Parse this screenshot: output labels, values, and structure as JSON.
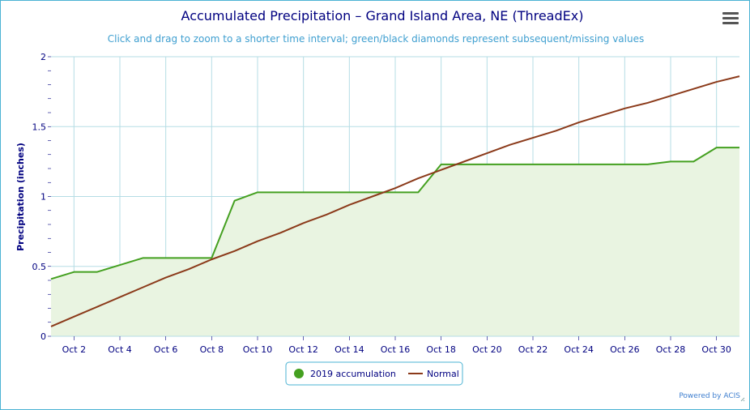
{
  "title": "Accumulated Precipitation – Grand Island Area, NE (ThreadEx)",
  "subtitle": "Click and drag to zoom to a shorter time interval; green/black diamonds represent subsequent/missing values",
  "credit": "Powered by ACIS",
  "menu_icon": "hamburger-menu-icon",
  "colors": {
    "accumulation": "#44a020",
    "accumulation_fill": "#e9f4e1",
    "normal": "#8b3a1a",
    "grid": "#b5dde5",
    "axis_text": "#000080"
  },
  "chart_data": {
    "type": "line",
    "ylabel": "Precipitation (inches)",
    "ylim": [
      0,
      2
    ],
    "yticks": [
      0,
      0.5,
      1,
      1.5,
      2
    ],
    "ytick_labels": [
      "0",
      "0.5",
      "1",
      "1.5",
      "2"
    ],
    "x": [
      1,
      2,
      3,
      4,
      5,
      6,
      7,
      8,
      9,
      10,
      11,
      12,
      13,
      14,
      15,
      16,
      17,
      18,
      19,
      20,
      21,
      22,
      23,
      24,
      25,
      26,
      27,
      28,
      29,
      30,
      31
    ],
    "xlim": [
      1,
      31
    ],
    "xticks": [
      2,
      4,
      6,
      8,
      10,
      12,
      14,
      16,
      18,
      20,
      22,
      24,
      26,
      28,
      30
    ],
    "xtick_labels": [
      "Oct 2",
      "Oct 4",
      "Oct 6",
      "Oct 8",
      "Oct 10",
      "Oct 12",
      "Oct 14",
      "Oct 16",
      "Oct 18",
      "Oct 20",
      "Oct 22",
      "Oct 24",
      "Oct 26",
      "Oct 28",
      "Oct 30"
    ],
    "grid": true,
    "legend_position": "bottom-center",
    "series": [
      {
        "name": "2019 accumulation",
        "type": "area",
        "values": [
          0.41,
          0.46,
          0.46,
          0.51,
          0.56,
          0.56,
          0.56,
          0.56,
          0.97,
          1.03,
          1.03,
          1.03,
          1.03,
          1.03,
          1.03,
          1.03,
          1.03,
          1.23,
          1.23,
          1.23,
          1.23,
          1.23,
          1.23,
          1.23,
          1.23,
          1.23,
          1.23,
          1.25,
          1.25,
          1.35,
          1.35
        ]
      },
      {
        "name": "Normal",
        "type": "line",
        "values": [
          0.07,
          0.14,
          0.21,
          0.28,
          0.35,
          0.42,
          0.48,
          0.55,
          0.61,
          0.68,
          0.74,
          0.81,
          0.87,
          0.94,
          1.0,
          1.06,
          1.13,
          1.19,
          1.25,
          1.31,
          1.37,
          1.42,
          1.47,
          1.53,
          1.58,
          1.63,
          1.67,
          1.72,
          1.77,
          1.82,
          1.86
        ]
      }
    ]
  }
}
